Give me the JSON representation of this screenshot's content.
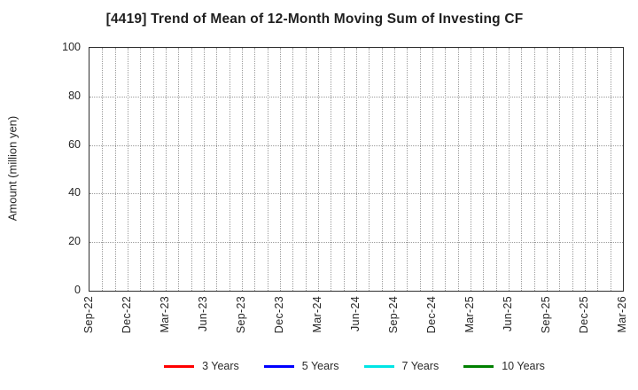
{
  "title": "[4419]  Trend of Mean of 12-Month Moving Sum of Investing CF",
  "y_axis": {
    "label": "Amount (million yen)",
    "ticks": [
      0,
      20,
      40,
      60,
      80,
      100
    ],
    "min": 0,
    "max": 100
  },
  "x_axis": {
    "tick_labels": [
      "Sep-22",
      "Dec-22",
      "Mar-23",
      "Jun-23",
      "Sep-23",
      "Dec-23",
      "Mar-24",
      "Jun-24",
      "Sep-24",
      "Dec-24",
      "Mar-25",
      "Jun-25",
      "Sep-25",
      "Dec-25",
      "Mar-26"
    ],
    "months_total": 42,
    "months_per_tick": 3
  },
  "legend": [
    {
      "label": "3 Years",
      "color": "#ff0000"
    },
    {
      "label": "5 Years",
      "color": "#0000ff"
    },
    {
      "label": "7 Years",
      "color": "#00e5e5"
    },
    {
      "label": "10 Years",
      "color": "#008000"
    }
  ],
  "chart_data": {
    "type": "line",
    "title": "[4419]  Trend of Mean of 12-Month Moving Sum of Investing CF",
    "xlabel": "",
    "ylabel": "Amount (million yen)",
    "ylim": [
      0,
      100
    ],
    "y_ticks": [
      0,
      20,
      40,
      60,
      80,
      100
    ],
    "x": [
      "Sep-22",
      "Dec-22",
      "Mar-23",
      "Jun-23",
      "Sep-23",
      "Dec-23",
      "Mar-24",
      "Jun-24",
      "Sep-24",
      "Dec-24",
      "Mar-25",
      "Jun-25",
      "Sep-25",
      "Dec-25",
      "Mar-26"
    ],
    "series": [
      {
        "name": "3 Years",
        "color": "#ff0000",
        "values": []
      },
      {
        "name": "5 Years",
        "color": "#0000ff",
        "values": []
      },
      {
        "name": "7 Years",
        "color": "#00e5e5",
        "values": []
      },
      {
        "name": "10 Years",
        "color": "#008000",
        "values": []
      }
    ],
    "grid": true,
    "grid_style": "dotted",
    "legend_position": "bottom",
    "note": "Plot area is empty - no data lines are drawn in the visible chart"
  }
}
